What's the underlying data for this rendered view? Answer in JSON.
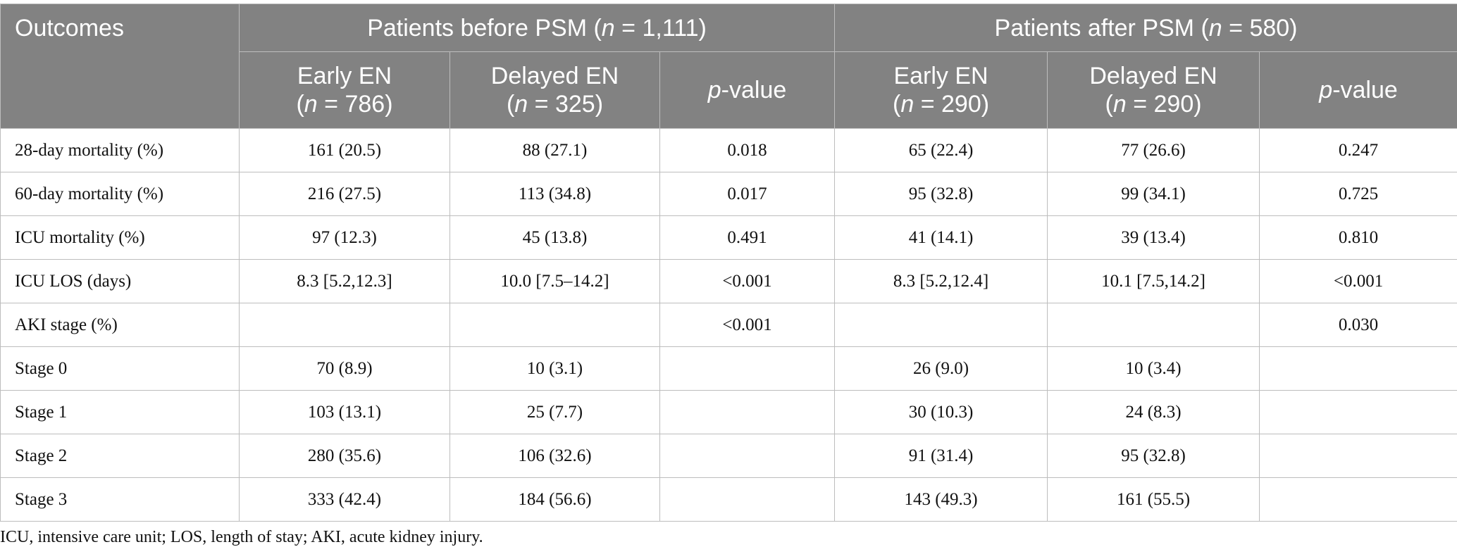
{
  "header": {
    "outcomes": "Outcomes",
    "groups": [
      [
        {
          "text": "Patients before PSM ("
        },
        {
          "text": "n",
          "italic": true
        },
        {
          "text": " = 1,111)"
        }
      ],
      [
        {
          "text": "Patients after PSM ("
        },
        {
          "text": "n",
          "italic": true
        },
        {
          "text": " = 580)"
        }
      ]
    ],
    "columns": [
      [
        [
          {
            "text": "Early EN"
          }
        ],
        [
          {
            "text": "("
          },
          {
            "text": "n",
            "italic": true
          },
          {
            "text": " = 786)"
          }
        ]
      ],
      [
        [
          {
            "text": "Delayed EN"
          }
        ],
        [
          {
            "text": "("
          },
          {
            "text": "n",
            "italic": true
          },
          {
            "text": " = 325)"
          }
        ]
      ],
      [
        [
          {
            "text": "p",
            "italic": true
          },
          {
            "text": "-value"
          }
        ]
      ],
      [
        [
          {
            "text": "Early EN"
          }
        ],
        [
          {
            "text": "("
          },
          {
            "text": "n",
            "italic": true
          },
          {
            "text": " = 290)"
          }
        ]
      ],
      [
        [
          {
            "text": "Delayed EN"
          }
        ],
        [
          {
            "text": "("
          },
          {
            "text": "n",
            "italic": true
          },
          {
            "text": " = 290)"
          }
        ]
      ],
      [
        [
          {
            "text": "p",
            "italic": true
          },
          {
            "text": "-value"
          }
        ]
      ]
    ]
  },
  "table": {
    "rows": [
      [
        "28-day mortality (%)",
        "161 (20.5)",
        "88 (27.1)",
        "0.018",
        "65 (22.4)",
        "77 (26.6)",
        "0.247"
      ],
      [
        "60-day mortality (%)",
        "216 (27.5)",
        "113 (34.8)",
        "0.017",
        "95 (32.8)",
        "99 (34.1)",
        "0.725"
      ],
      [
        "ICU mortality (%)",
        "97 (12.3)",
        "45 (13.8)",
        "0.491",
        "41 (14.1)",
        "39 (13.4)",
        "0.810"
      ],
      [
        "ICU LOS (days)",
        "8.3 [5.2,12.3]",
        "10.0 [7.5–14.2]",
        "<0.001",
        "8.3 [5.2,12.4]",
        "10.1 [7.5,14.2]",
        "<0.001"
      ],
      [
        "AKI stage (%)",
        null,
        null,
        "<0.001",
        null,
        null,
        "0.030"
      ],
      [
        "Stage 0",
        "70 (8.9)",
        "10 (3.1)",
        null,
        "26 (9.0)",
        "10 (3.4)",
        null
      ],
      [
        "Stage 1",
        "103 (13.1)",
        "25 (7.7)",
        null,
        "30 (10.3)",
        "24 (8.3)",
        null
      ],
      [
        "Stage 2",
        "280 (35.6)",
        "106 (32.6)",
        null,
        "91 (31.4)",
        "95 (32.8)",
        null
      ],
      [
        "Stage 3",
        "333 (42.4)",
        "184 (56.6)",
        null,
        "143 (49.3)",
        "161 (55.5)",
        null
      ]
    ]
  },
  "footnote": "ICU, intensive care unit; LOS, length of stay; AKI, acute kidney injury."
}
